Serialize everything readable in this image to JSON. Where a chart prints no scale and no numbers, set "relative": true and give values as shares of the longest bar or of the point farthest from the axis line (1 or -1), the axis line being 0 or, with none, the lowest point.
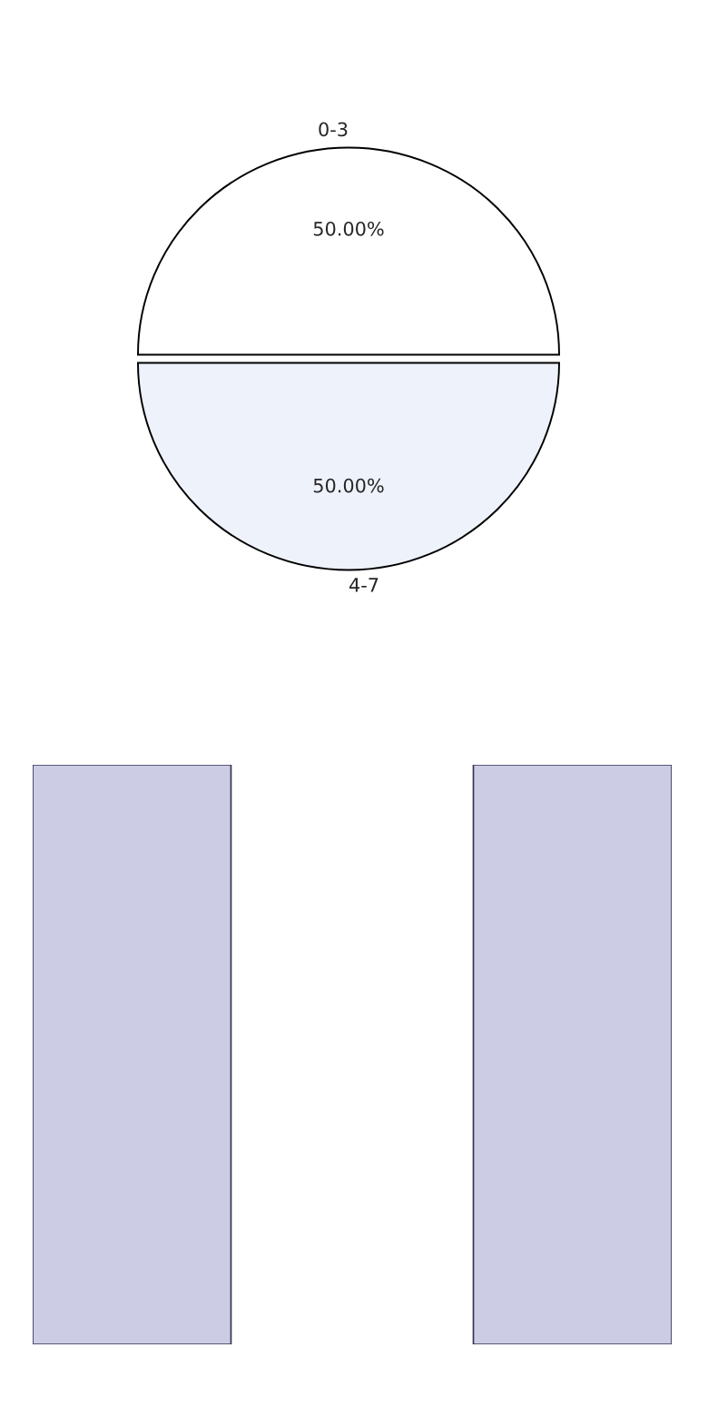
{
  "chart_data": [
    {
      "type": "pie",
      "categories": [
        "0-3",
        "4-7"
      ],
      "values": [
        50,
        50
      ],
      "colors": [
        "#ffffff",
        "#eef2fa"
      ],
      "value_labels": [
        "50.00%",
        "50.00%"
      ]
    },
    {
      "type": "bar",
      "categories": [
        null,
        null
      ],
      "values": [
        1,
        1
      ],
      "color": "#ccccE4",
      "relative": true
    }
  ]
}
